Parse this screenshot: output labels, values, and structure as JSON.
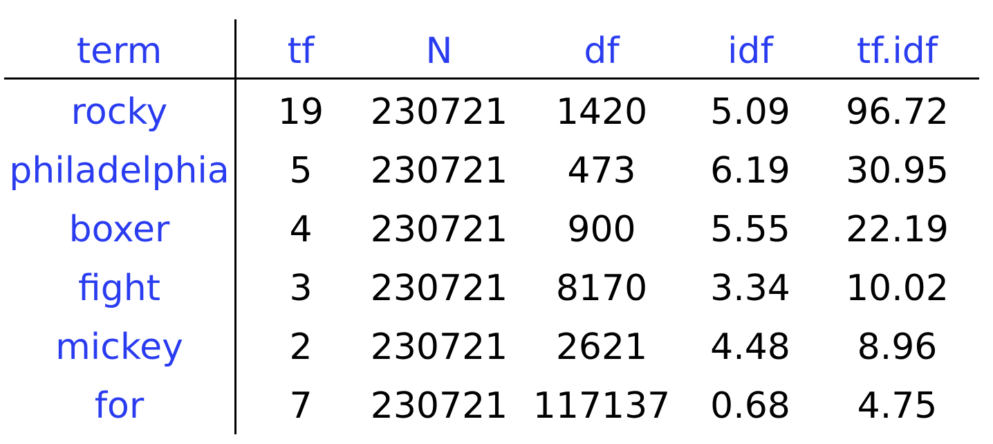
{
  "table": {
    "headers": [
      "term",
      "tf",
      "N",
      "df",
      "idf",
      "tf.idf"
    ],
    "rows": [
      [
        "rocky",
        "19",
        "230721",
        "1420",
        "5.09",
        "96.72"
      ],
      [
        "philadelphia",
        "5",
        "230721",
        "473",
        "6.19",
        "30.95"
      ],
      [
        "boxer",
        "4",
        "230721",
        "900",
        "5.55",
        "22.19"
      ],
      [
        "fight",
        "3",
        "230721",
        "8170",
        "3.34",
        "10.02"
      ],
      [
        "mickey",
        "2",
        "230721",
        "2621",
        "4.48",
        "8.96"
      ],
      [
        "for",
        "7",
        "230721",
        "117137",
        "0.68",
        "4.75"
      ]
    ]
  },
  "colors": {
    "header": "#2a3cf0",
    "term": "#2a3cf0",
    "number": "#000000"
  }
}
